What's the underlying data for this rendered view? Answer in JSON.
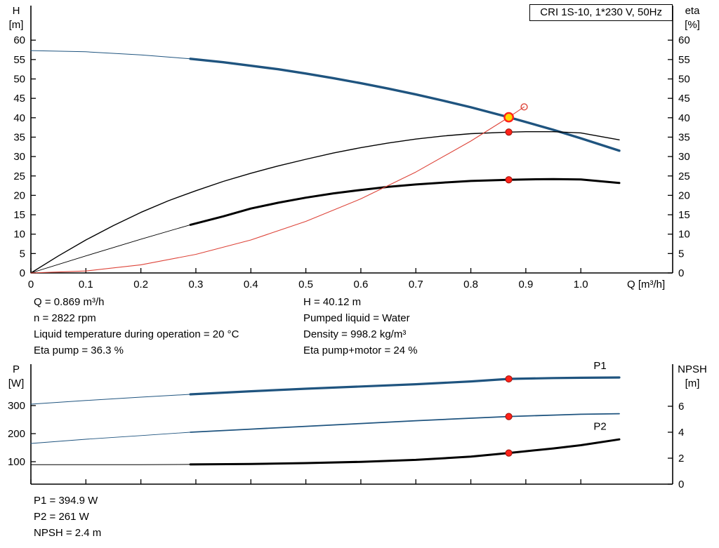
{
  "title_box": "CRI 1S-10, 1*230 V, 50Hz",
  "info_top_left": [
    "Q = 0.869 m³/h",
    "n = 2822 rpm",
    "Liquid temperature during operation = 20 °C",
    "Eta pump = 36.3 %"
  ],
  "info_top_right": [
    "H = 40.12 m",
    "Pumped liquid = Water",
    "Density = 998.2 kg/m³",
    "Eta pump+motor = 24 %"
  ],
  "info_bottom": [
    "P1 = 394.9 W",
    "P2 = 261 W",
    "NPSH = 2.4 m"
  ],
  "colors": {
    "curve_blue": "#1f547f",
    "curve_black": "#000000",
    "curve_red": "#dd4338",
    "dot_fill": "#ff221a",
    "dot_stroke": "#9c1208",
    "duty_fill": "#ffd800",
    "axis": "#000000"
  },
  "chart_data": [
    {
      "id": "qh-eta-chart",
      "type": "line",
      "title": "CRI 1S-10, 1*230 V, 50Hz",
      "x_axis": {
        "label": "Q [m³/h]",
        "range": [
          0,
          1.167
        ],
        "ticks": [
          0,
          0.1,
          0.2,
          0.3,
          0.4,
          0.5,
          0.6,
          0.7,
          0.8,
          0.9,
          1.0
        ],
        "tick_labels": [
          "0",
          "0.1",
          "0.2",
          "0.3",
          "0.4",
          "0.5",
          "0.6",
          "0.7",
          "0.8",
          "0.9",
          "1.0"
        ]
      },
      "y_left": {
        "title_lines": [
          "H",
          "[m]"
        ],
        "range": [
          0,
          68.9
        ],
        "ticks": [
          0,
          5,
          10,
          15,
          20,
          25,
          30,
          35,
          40,
          45,
          50,
          55,
          60
        ],
        "tick_labels": [
          "0",
          "5",
          "10",
          "15",
          "20",
          "25",
          "30",
          "35",
          "40",
          "45",
          "50",
          "55",
          "60"
        ]
      },
      "y_right": {
        "title_lines": [
          "eta",
          "[%]"
        ],
        "range": [
          0,
          68.9
        ],
        "ticks": [
          0,
          5,
          10,
          15,
          20,
          25,
          30,
          35,
          40,
          45,
          50,
          55,
          60
        ],
        "tick_labels": [
          "0",
          "5",
          "10",
          "15",
          "20",
          "25",
          "30",
          "35",
          "40",
          "45",
          "50",
          "55",
          "60"
        ]
      },
      "series": [
        {
          "name": "head-curve-lead-in",
          "axis": "left",
          "color": "curve_blue",
          "width": 1,
          "x": [
            0,
            0.1,
            0.2,
            0.29
          ],
          "y": [
            57.3,
            57.0,
            56.2,
            55.2
          ]
        },
        {
          "name": "head-curve",
          "axis": "left",
          "color": "curve_blue",
          "width": 3.4,
          "x": [
            0.29,
            0.35,
            0.4,
            0.45,
            0.5,
            0.55,
            0.6,
            0.65,
            0.7,
            0.75,
            0.8,
            0.869,
            0.9,
            0.95,
            1.0,
            1.07
          ],
          "y": [
            55.2,
            54.3,
            53.4,
            52.5,
            51.4,
            50.2,
            48.9,
            47.5,
            46.0,
            44.4,
            42.7,
            40.12,
            38.9,
            36.9,
            34.7,
            31.5
          ]
        },
        {
          "name": "eta-pump-curve",
          "axis": "left",
          "color": "curve_black",
          "width": 1.4,
          "x": [
            0,
            0.05,
            0.1,
            0.15,
            0.2,
            0.25,
            0.3,
            0.35,
            0.4,
            0.45,
            0.5,
            0.55,
            0.6,
            0.65,
            0.7,
            0.75,
            0.8,
            0.869,
            0.9,
            0.95,
            1.0,
            1.07
          ],
          "y": [
            0,
            4.4,
            8.5,
            12.2,
            15.6,
            18.6,
            21.2,
            23.6,
            25.7,
            27.6,
            29.3,
            30.9,
            32.3,
            33.5,
            34.5,
            35.3,
            35.9,
            36.3,
            36.4,
            36.4,
            36.1,
            34.3
          ]
        },
        {
          "name": "eta-pump-motor-lead-in",
          "axis": "left",
          "color": "curve_black",
          "width": 0.9,
          "x": [
            0,
            0.1,
            0.2,
            0.29
          ],
          "y": [
            0,
            4.4,
            8.7,
            12.4
          ]
        },
        {
          "name": "eta-pump-motor-curve",
          "axis": "left",
          "color": "curve_black",
          "width": 3,
          "x": [
            0.29,
            0.35,
            0.4,
            0.45,
            0.5,
            0.55,
            0.6,
            0.65,
            0.7,
            0.75,
            0.8,
            0.869,
            0.9,
            0.95,
            1.0,
            1.07
          ],
          "y": [
            12.4,
            14.6,
            16.6,
            18.1,
            19.4,
            20.5,
            21.4,
            22.2,
            22.8,
            23.3,
            23.7,
            24.0,
            24.1,
            24.2,
            24.1,
            23.2
          ]
        },
        {
          "name": "system-curve",
          "axis": "left",
          "color": "curve_red",
          "width": 1.1,
          "x": [
            0,
            0.1,
            0.2,
            0.3,
            0.4,
            0.5,
            0.6,
            0.7,
            0.8,
            0.869,
            0.897
          ],
          "y": [
            0,
            0.5,
            2.1,
            4.8,
            8.5,
            13.3,
            19.1,
            26.0,
            34.0,
            40.12,
            42.8
          ]
        }
      ],
      "markers": [
        {
          "kind": "open-circle",
          "x": 0.897,
          "y": 42.8,
          "axis": "left"
        },
        {
          "kind": "dot",
          "x": 0.869,
          "y": 36.3,
          "axis": "left"
        },
        {
          "kind": "dot",
          "x": 0.869,
          "y": 24.0,
          "axis": "left"
        },
        {
          "kind": "duty-point",
          "x": 0.869,
          "y": 40.12,
          "axis": "left"
        }
      ],
      "curve_labels": []
    },
    {
      "id": "power-npsh-chart",
      "type": "line",
      "title": "",
      "x_axis": {
        "label": "",
        "range": [
          0,
          1.167
        ],
        "ticks": [
          0,
          0.1,
          0.2,
          0.3,
          0.4,
          0.5,
          0.6,
          0.7,
          0.8,
          0.9,
          1.0
        ],
        "tick_labels": []
      },
      "y_left": {
        "title_lines": [
          "P",
          "[W]"
        ],
        "range": [
          20,
          447.5
        ],
        "ticks": [
          100,
          200,
          300
        ],
        "tick_labels": [
          "100",
          "200",
          "300"
        ]
      },
      "y_right": {
        "title_lines": [
          "NPSH",
          "[m]"
        ],
        "range": [
          0,
          9.243
        ],
        "ticks": [
          0,
          2,
          4,
          6
        ],
        "tick_labels": [
          "0",
          "2",
          "4",
          "6"
        ]
      },
      "series": [
        {
          "name": "p1-curve-lead-in",
          "axis": "left",
          "color": "curve_blue",
          "width": 1,
          "x": [
            0,
            0.1,
            0.2,
            0.29
          ],
          "y": [
            305,
            318,
            330,
            340
          ]
        },
        {
          "name": "p1-curve",
          "axis": "left",
          "color": "curve_blue",
          "width": 3.2,
          "x": [
            0.29,
            0.4,
            0.5,
            0.6,
            0.7,
            0.8,
            0.869,
            0.95,
            1.0,
            1.07
          ],
          "y": [
            340,
            351,
            360,
            368,
            376,
            386,
            394.9,
            398,
            399,
            400
          ]
        },
        {
          "name": "p2-curve-lead-in",
          "axis": "left",
          "color": "curve_blue",
          "width": 0.9,
          "x": [
            0,
            0.1,
            0.2,
            0.29
          ],
          "y": [
            165,
            180,
            193,
            205
          ]
        },
        {
          "name": "p2-curve",
          "axis": "left",
          "color": "curve_blue",
          "width": 1.8,
          "x": [
            0.29,
            0.4,
            0.5,
            0.6,
            0.7,
            0.8,
            0.869,
            0.95,
            1.0,
            1.07
          ],
          "y": [
            205,
            216,
            226,
            236,
            246,
            255,
            261,
            266,
            269,
            271
          ]
        },
        {
          "name": "npsh-curve-lead-in",
          "axis": "right",
          "color": "curve_black",
          "width": 1,
          "x": [
            0,
            0.1,
            0.2,
            0.29
          ],
          "y": [
            1.5,
            1.5,
            1.5,
            1.52
          ]
        },
        {
          "name": "npsh-curve",
          "axis": "right",
          "color": "curve_black",
          "width": 3,
          "x": [
            0.29,
            0.4,
            0.5,
            0.6,
            0.7,
            0.8,
            0.869,
            0.95,
            1.0,
            1.07
          ],
          "y": [
            1.52,
            1.55,
            1.62,
            1.72,
            1.87,
            2.12,
            2.4,
            2.75,
            3.0,
            3.45
          ]
        }
      ],
      "markers": [
        {
          "kind": "dot",
          "x": 0.869,
          "y": 394.9,
          "axis": "left"
        },
        {
          "kind": "dot",
          "x": 0.869,
          "y": 261,
          "axis": "left"
        },
        {
          "kind": "dot",
          "x": 0.869,
          "y": 2.4,
          "axis": "right"
        }
      ],
      "curve_labels": [
        {
          "text": "P1",
          "x": 1.035,
          "y": 430,
          "axis": "left"
        },
        {
          "text": "P2",
          "x": 1.035,
          "y": 214,
          "axis": "left"
        }
      ]
    }
  ]
}
